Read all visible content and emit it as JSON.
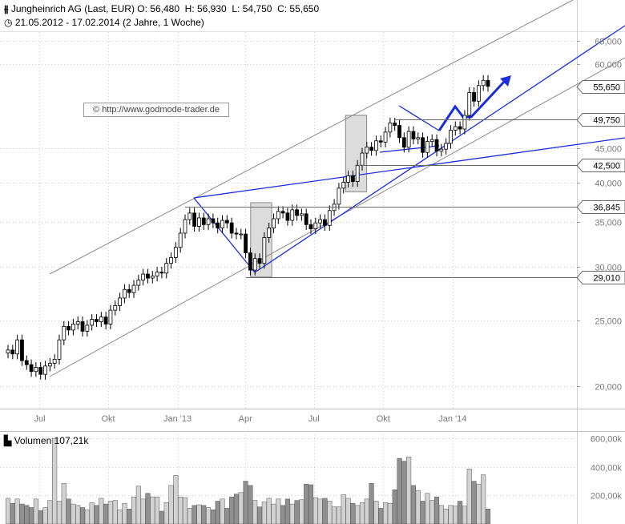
{
  "header": {
    "title": "Jungheinrich AG (Last, EUR)",
    "ohlc": "O: 56,480  H: 56,930  L: 54,750  C: 55,650",
    "period": "21.05.2012 - 17.02.2014 (2 Jahre, 1 Woche)"
  },
  "watermark": "© http://www.godmode-trader.de",
  "volume_label": "Volumen 107,21k",
  "colors": {
    "trend": "#1a2ee0",
    "channel": "#8a8a8a",
    "level": "#6a6a6a",
    "box": "#dcdcdc"
  },
  "chart_data": [
    {
      "type": "candlestick",
      "title": "Jungheinrich AG (Last, EUR)",
      "scale": "log",
      "ylim": [
        18500,
        67000
      ],
      "y_ticks": [
        65000,
        60000,
        45000,
        40000,
        35000,
        30000,
        25000,
        20000
      ],
      "y_tick_labels": [
        "65,000",
        "60,000",
        "45,000",
        "40,000",
        "35,000",
        "30,000",
        "25,000",
        "20,000"
      ],
      "x_ticks": [
        {
          "label": "Jul",
          "date": "2012-07-02"
        },
        {
          "label": "Okt",
          "date": "2012-10-01"
        },
        {
          "label": "Jan '13",
          "date": "2013-01-01"
        },
        {
          "label": "Apr",
          "date": "2013-04-01"
        },
        {
          "label": "Jul",
          "date": "2013-07-01"
        },
        {
          "label": "Okt",
          "date": "2013-10-01"
        },
        {
          "label": "Jan '14",
          "date": "2014-01-01"
        }
      ],
      "closes": [
        22600,
        22300,
        23400,
        21800,
        21500,
        21000,
        21300,
        20800,
        21400,
        21600,
        21900,
        23400,
        24500,
        24200,
        24700,
        24900,
        24100,
        24600,
        25100,
        24900,
        25300,
        24700,
        25900,
        26300,
        27000,
        27800,
        27500,
        28200,
        28700,
        29300,
        28900,
        29100,
        29500,
        29400,
        30400,
        31000,
        32100,
        33700,
        35300,
        36100,
        34500,
        35500,
        34700,
        35400,
        34900,
        34300,
        35200,
        34900,
        33700,
        33600,
        33600,
        31500,
        29700,
        30900,
        30400,
        33200,
        34300,
        35400,
        36300,
        36100,
        35200,
        36500,
        35800,
        36000,
        34700,
        34200,
        34900,
        35300,
        34600,
        36400,
        37200,
        39300,
        40100,
        41000,
        40200,
        42500,
        44300,
        45200,
        44700,
        46200,
        46000,
        47600,
        49100,
        48700,
        46700,
        45200,
        47700,
        46500,
        46700,
        44400,
        46100,
        46400,
        44600,
        44900,
        45800,
        47900,
        48500,
        48100,
        50400,
        54500,
        52900,
        55800,
        56800,
        55650
      ],
      "levels": [
        {
          "label": "55,650",
          "value": 55650
        },
        {
          "label": "49,750",
          "value": 49750
        },
        {
          "label": "42,500",
          "value": 42500
        },
        {
          "label": "36,845",
          "value": 36845
        },
        {
          "label": "29,010",
          "value": 29010
        }
      ]
    },
    {
      "type": "bar",
      "title": "Volumen 107,21k",
      "ylim": [
        0,
        640000
      ],
      "y_ticks": [
        600000,
        400000,
        200000
      ],
      "y_tick_labels": [
        "600,00k",
        "400,00k",
        "200,00k"
      ],
      "values": [
        180,
        145,
        175,
        140,
        130,
        115,
        175,
        95,
        115,
        165,
        600,
        160,
        285,
        175,
        140,
        130,
        115,
        100,
        150,
        130,
        180,
        140,
        160,
        165,
        100,
        145,
        105,
        190,
        265,
        175,
        215,
        190,
        190,
        90,
        150,
        270,
        340,
        190,
        185,
        110,
        130,
        135,
        130,
        115,
        100,
        160,
        175,
        110,
        190,
        210,
        220,
        300,
        270,
        165,
        120,
        155,
        180,
        140,
        175,
        130,
        175,
        140,
        165,
        170,
        280,
        275,
        185,
        175,
        180,
        160,
        120,
        120,
        205,
        180,
        145,
        130,
        150,
        175,
        285,
        160,
        110,
        150,
        145,
        240,
        460,
        440,
        470,
        270,
        235,
        160,
        215,
        165,
        190,
        130,
        105,
        130,
        125,
        160,
        125,
        385,
        300,
        280,
        345,
        105
      ]
    }
  ]
}
